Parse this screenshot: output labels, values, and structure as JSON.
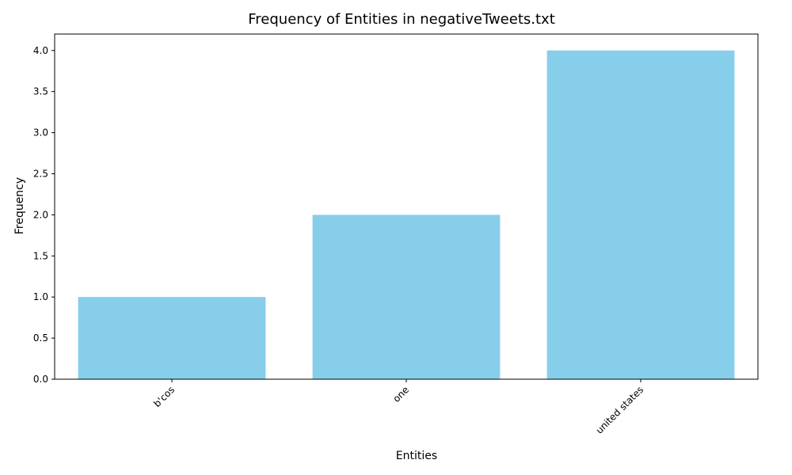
{
  "chart_data": {
    "type": "bar",
    "title": "Frequency of Entities in negativeTweets.txt",
    "xlabel": "Entities",
    "ylabel": "Frequency",
    "categories": [
      "b'cos",
      "one",
      "united states"
    ],
    "values": [
      1,
      2,
      4
    ],
    "ylim": [
      0,
      4.2
    ],
    "yticks": [
      0.0,
      0.5,
      1.0,
      1.5,
      2.0,
      2.5,
      3.0,
      3.5,
      4.0
    ],
    "ytick_labels": [
      "0.0",
      "0.5",
      "1.0",
      "1.5",
      "2.0",
      "2.5",
      "3.0",
      "3.5",
      "4.0"
    ],
    "bar_color": "#87CEEB",
    "grid": false,
    "legend": "none"
  }
}
